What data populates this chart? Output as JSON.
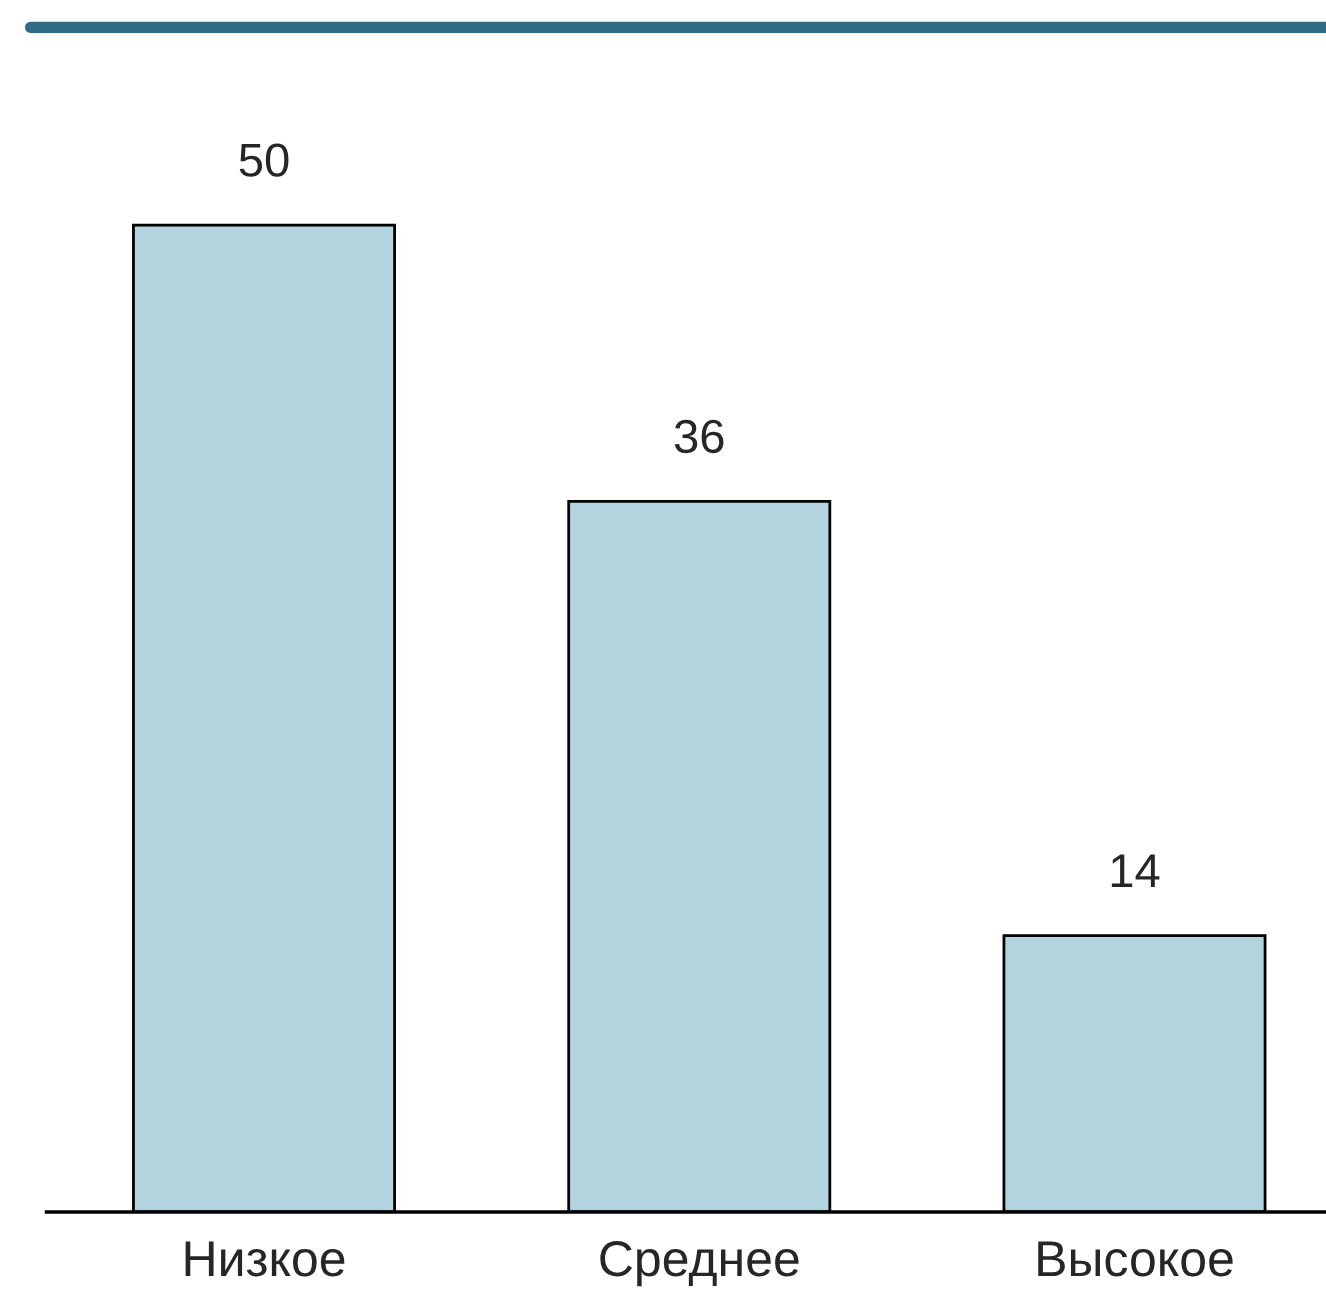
{
  "chart_data": {
    "type": "bar",
    "categories": [
      "Низкое",
      "Среднее",
      "Высокое"
    ],
    "values": [
      50,
      36,
      14
    ],
    "color": "#b3d4de",
    "data_labels": true,
    "grid": false,
    "legend": false
  }
}
